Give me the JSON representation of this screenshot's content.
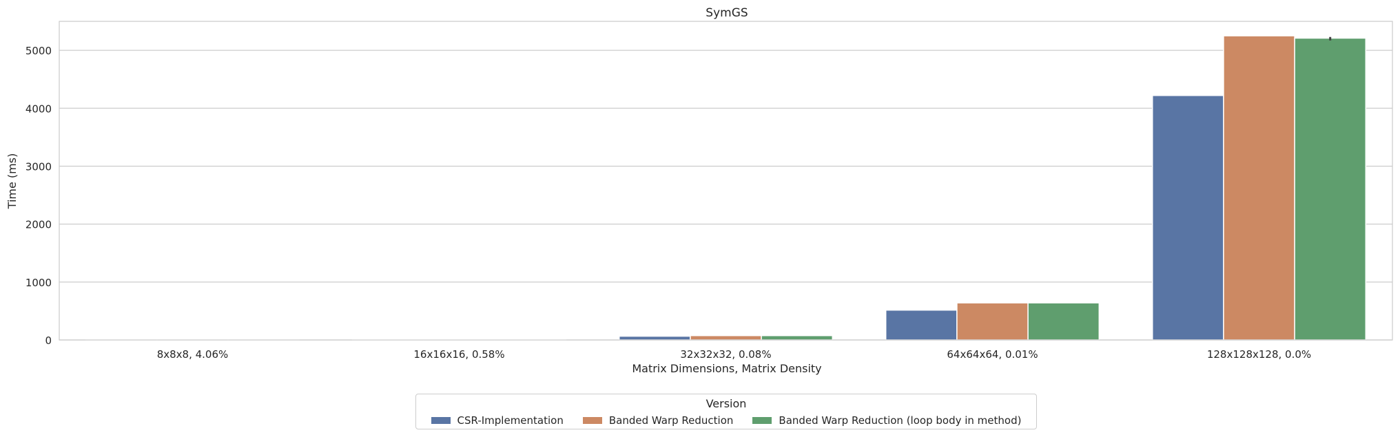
{
  "chart_data": {
    "type": "bar",
    "title": "SymGS",
    "xlabel": "Matrix Dimensions, Matrix Density",
    "ylabel": "Time (ms)",
    "categories": [
      "8x8x8, 4.06%",
      "16x16x16, 0.58%",
      "32x32x32, 0.08%",
      "64x64x64, 0.01%",
      "128x128x128, 0.0%"
    ],
    "ylim": [
      0,
      5500
    ],
    "yticks": [
      "0",
      "1000",
      "2000",
      "3000",
      "4000",
      "5000"
    ],
    "grid": true,
    "legend_title": "Version",
    "legend_position": "bottom-center",
    "series": [
      {
        "name": "CSR-Implementation",
        "color": "#5975a4",
        "values": [
          1,
          8,
          65,
          515,
          4220
        ]
      },
      {
        "name": "Banded Warp Reduction",
        "color": "#cc8963",
        "values": [
          1,
          10,
          75,
          640,
          5250
        ]
      },
      {
        "name": "Banded Warp Reduction (loop body in method)",
        "color": "#5f9e6e",
        "values": [
          1,
          10,
          75,
          640,
          5210
        ]
      }
    ],
    "error_bars": [
      {
        "series": 2,
        "category": 4,
        "low": 5170,
        "high": 5230
      }
    ]
  }
}
